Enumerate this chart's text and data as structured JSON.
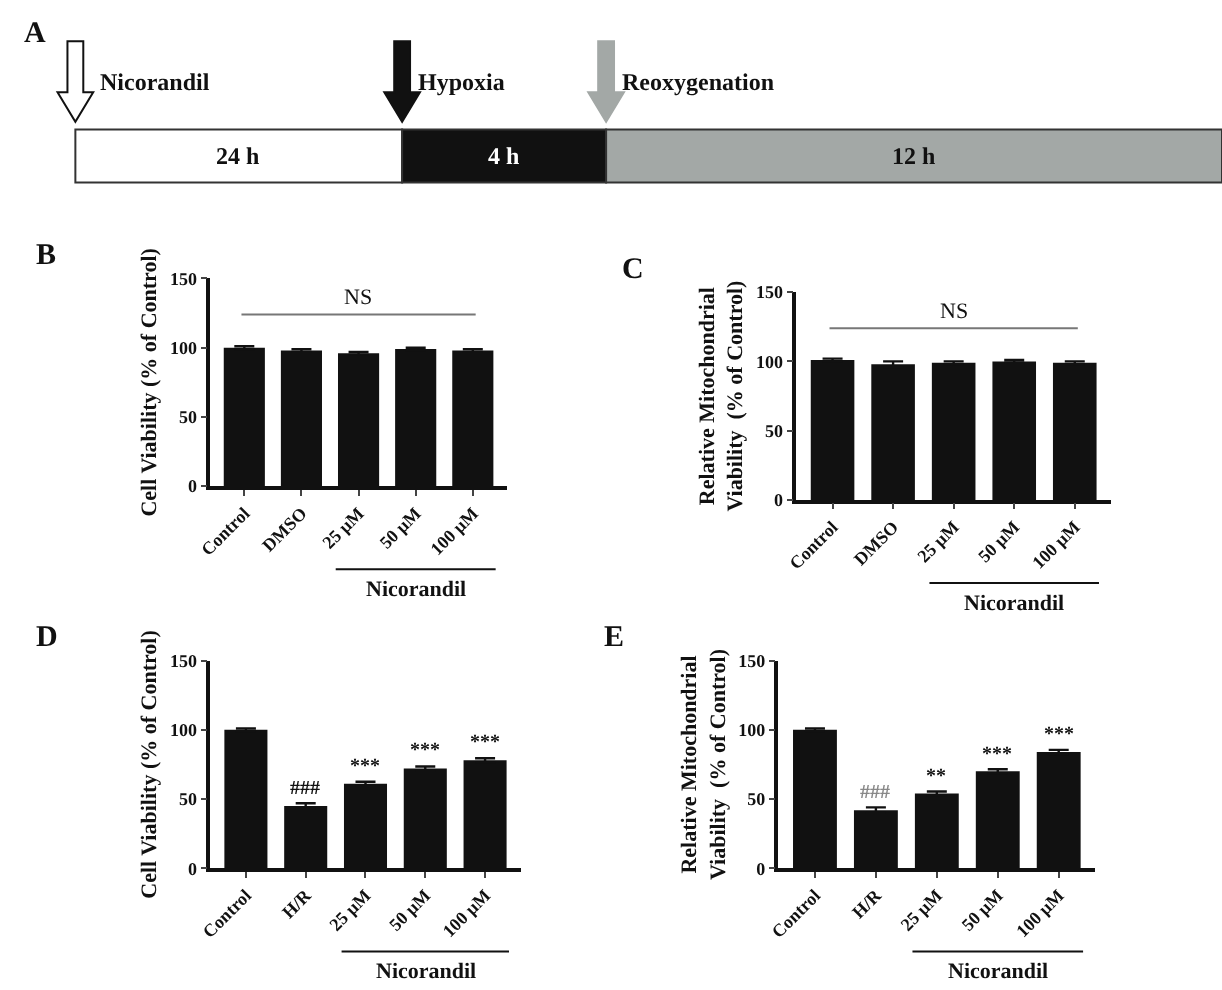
{
  "chart_data": [
    {
      "type": "other",
      "title": "A",
      "annotations": [
        "Nicorandil",
        "Hypoxia",
        "Reoxygenation",
        "24 h",
        "4 h",
        "12 h"
      ]
    },
    {
      "type": "bar",
      "title": "B",
      "ylabel": "Cell Viability (% of Control)",
      "categories": [
        "Control",
        "DMSO",
        "25 μM",
        "50 μM",
        "100 μM"
      ],
      "values": [
        100,
        98,
        96,
        99,
        98
      ],
      "errors": [
        1,
        1,
        1,
        1,
        1
      ],
      "color": "#111111",
      "ylim": [
        0,
        150
      ],
      "yticks": [
        0,
        50,
        100,
        150
      ],
      "grid": false,
      "ref_lines": [
        {
          "axis": "y",
          "value": 124,
          "label": "NS"
        }
      ],
      "annotations": [
        "Nicorandil"
      ]
    },
    {
      "type": "bar",
      "title": "C",
      "ylabel": "Relative Mitochondrial\nViability  (% of Control)",
      "categories": [
        "Control",
        "DMSO",
        "25 μM",
        "50 μM",
        "100 μM"
      ],
      "values": [
        101,
        98,
        99,
        100,
        99
      ],
      "errors": [
        1,
        2,
        1,
        1,
        1
      ],
      "color": "#111111",
      "ylim": [
        0,
        150
      ],
      "yticks": [
        0,
        50,
        100,
        150
      ],
      "grid": false,
      "ref_lines": [
        {
          "axis": "y",
          "value": 124,
          "label": "NS"
        }
      ],
      "annotations": [
        "Nicorandil"
      ]
    },
    {
      "type": "bar",
      "title": "D",
      "ylabel": "Cell Viability (% of Control)",
      "categories": [
        "Control",
        "H/R",
        "25 μM",
        "50 μM",
        "100 μM"
      ],
      "values": [
        100,
        45,
        61,
        72,
        78
      ],
      "errors": [
        1,
        2,
        1.5,
        1.5,
        1.5
      ],
      "color": "#111111",
      "ylim": [
        0,
        150
      ],
      "yticks": [
        0,
        50,
        100,
        150
      ],
      "grid": false,
      "annotations": [
        "Nicorandil",
        {
          "text": "###",
          "x": "H/R",
          "y": 47
        },
        {
          "text": "***",
          "x": "25 μM",
          "y": 62.5
        },
        {
          "text": "***",
          "x": "50 μM",
          "y": 73.5
        },
        {
          "text": "***",
          "x": "100 μM",
          "y": 79.5
        }
      ]
    },
    {
      "type": "bar",
      "title": "E",
      "ylabel": "Relative Mitochondrial\nViability  (% of Control)",
      "categories": [
        "Control",
        "H/R",
        "25 μM",
        "50 μM",
        "100 μM"
      ],
      "values": [
        100,
        42,
        54,
        70,
        84
      ],
      "errors": [
        1,
        2,
        1.5,
        1.5,
        1.5
      ],
      "color": "#111111",
      "ylim": [
        0,
        150
      ],
      "yticks": [
        0,
        50,
        100,
        150
      ],
      "grid": false,
      "annotations": [
        "Nicorandil",
        {
          "text": "###",
          "x": "H/R",
          "y": 44
        },
        {
          "text": "**",
          "x": "25 μM",
          "y": 55.5
        },
        {
          "text": "***",
          "x": "50 μM",
          "y": 71.5
        },
        {
          "text": "***",
          "x": "100 μM",
          "y": 85.5
        }
      ]
    }
  ]
}
